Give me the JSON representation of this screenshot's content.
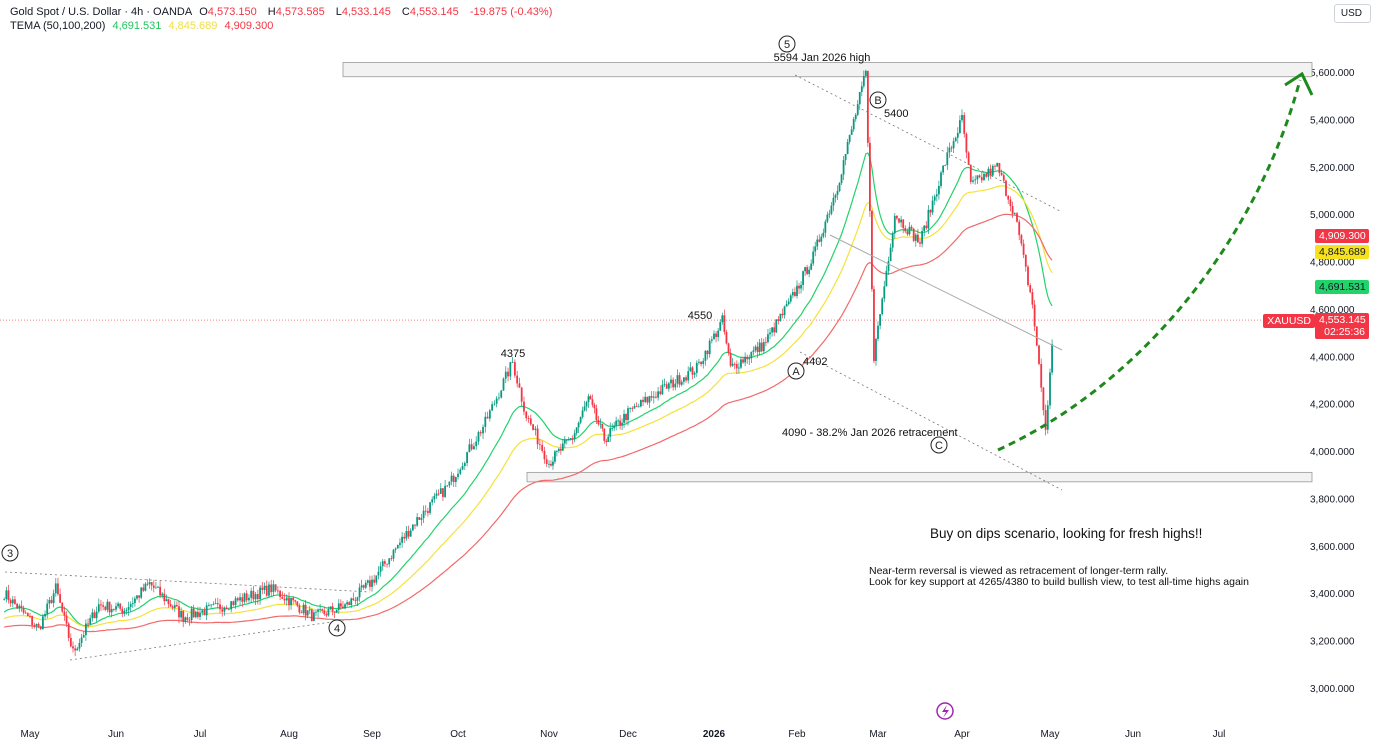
{
  "header": {
    "title": "Gold Spot / U.S. Dollar · 4h · OANDA",
    "open_label": "O",
    "open": "4,573.150",
    "high_label": "H",
    "high": "4,573.585",
    "low_label": "L",
    "low": "4,533.145",
    "close_label": "C",
    "close": "4,553.145",
    "change": "-19.875 (-0.43%)",
    "indicator": "TEMA (50,100,200)",
    "ind_values": [
      "4,691.531",
      "4,845.689",
      "4,909.300"
    ]
  },
  "currency_button": "USD",
  "price_tags": {
    "tema200": "4,909.300",
    "tema100": "4,845.689",
    "tema50": "4,691.531",
    "symbol": "XAUUSD",
    "last": "4,553.145",
    "countdown": "02:25:36"
  },
  "colors": {
    "up": "#089981",
    "down": "#f23645",
    "tema50": "#22d36b",
    "tema100": "#f4e23a",
    "tema200": "#f26a6a",
    "arrow": "#1e8a1e",
    "zone": "#f2f2f2"
  },
  "chart_data": {
    "type": "candlestick",
    "symbol": "XAUUSD",
    "timeframe": "4h",
    "y_ticks": [
      3000,
      3200,
      3400,
      3600,
      3800,
      4000,
      4200,
      4400,
      4600,
      4800,
      5000,
      5200,
      5400,
      5600
    ],
    "y_tick_labels": [
      "3,000.000",
      "3,200.000",
      "3,400.000",
      "3,600.000",
      "3,800.000",
      "4,000.000",
      "4,200.000",
      "4,400.000",
      "4,600.000",
      "4,800.000",
      "5,000.000",
      "5,200.000",
      "5,400.000",
      "5,600.000"
    ],
    "ylim": [
      2880,
      5770
    ],
    "x_ticks": [
      "May",
      "Jun",
      "Jul",
      "Aug",
      "Sep",
      "Oct",
      "Nov",
      "Dec",
      "2026",
      "Feb",
      "Mar",
      "Apr",
      "May",
      "Jun",
      "Jul"
    ],
    "price_path_note": "t = months since May 2025",
    "price_path": [
      [
        -0.3,
        3400
      ],
      [
        0.1,
        3250
      ],
      [
        0.3,
        3420
      ],
      [
        0.5,
        3150
      ],
      [
        0.8,
        3350
      ],
      [
        1.1,
        3330
      ],
      [
        1.4,
        3440
      ],
      [
        1.8,
        3300
      ],
      [
        2.2,
        3340
      ],
      [
        2.8,
        3420
      ],
      [
        3.3,
        3300
      ],
      [
        3.7,
        3350
      ],
      [
        4.0,
        3450
      ],
      [
        4.5,
        3700
      ],
      [
        4.9,
        3860
      ],
      [
        5.3,
        4120
      ],
      [
        5.6,
        4375
      ],
      [
        5.75,
        4150
      ],
      [
        6.0,
        3950
      ],
      [
        6.3,
        4060
      ],
      [
        6.5,
        4220
      ],
      [
        6.7,
        4050
      ],
      [
        7.0,
        4160
      ],
      [
        7.4,
        4260
      ],
      [
        7.8,
        4350
      ],
      [
        8.1,
        4550
      ],
      [
        8.2,
        4350
      ],
      [
        8.6,
        4450
      ],
      [
        8.9,
        4620
      ],
      [
        9.2,
        4820
      ],
      [
        9.5,
        5120
      ],
      [
        9.85,
        5594
      ],
      [
        9.95,
        4402
      ],
      [
        10.2,
        5000
      ],
      [
        10.5,
        4880
      ],
      [
        10.8,
        5220
      ],
      [
        11.0,
        5400
      ],
      [
        11.1,
        5120
      ],
      [
        11.4,
        5200
      ],
      [
        11.6,
        5000
      ],
      [
        11.8,
        4620
      ],
      [
        11.95,
        4090
      ],
      [
        12.05,
        4553
      ]
    ],
    "zones": [
      [
        5580,
        5640
      ],
      [
        3870,
        3910
      ]
    ],
    "annotations": {
      "wave3": "3",
      "wave4": "4",
      "wave5": "5",
      "waveA": "A",
      "waveB": "B",
      "waveC": "C",
      "l4375": "4375",
      "l4550": "4550",
      "high": "5594 Jan 2026 high",
      "l5400": "5400",
      "l4402": "4402",
      "retr": "4090 - 38.2% Jan 2026 retracement",
      "headline": "Buy on dips scenario, looking for fresh highs!!",
      "note1": "Near-term reversal is viewed as retracement of longer-term rally.",
      "note2": "Look for key support at 4265/4380 to build bullish view, to test all-time highs again"
    }
  }
}
